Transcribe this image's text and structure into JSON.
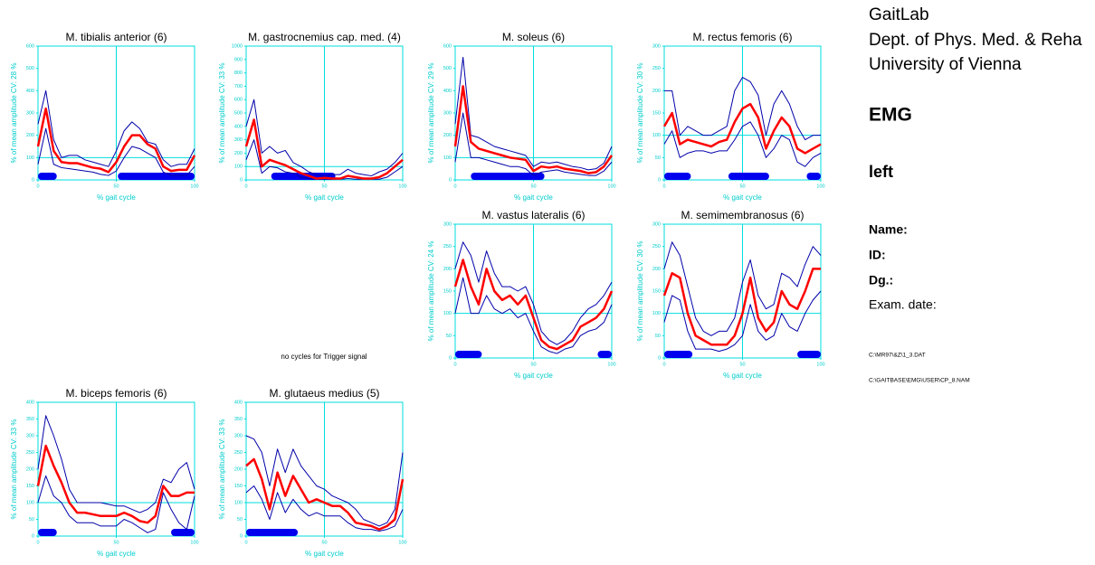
{
  "header": {
    "lines": [
      "GaitLab",
      "Dept. of Phys. Med. & Reha",
      "University of Vienna"
    ],
    "mode": "EMG",
    "side": "left",
    "fields": [
      "Name:",
      "ID:",
      "Dg.:"
    ],
    "exam_date": "Exam. date:",
    "files": [
      "C:\\MR97\\&Z\\1_3.DAT",
      "C:\\GAITBASE\\EMG\\USER\\CP_8.NAM"
    ]
  },
  "message": "no cycles for Trigger signal",
  "chart_data": [
    {
      "type": "line",
      "title": "M. tibialis anterior (6)",
      "xlabel": "% gait cycle",
      "ylabel": "% of mean amplitude  CV: 28 %",
      "x": [
        0,
        5,
        10,
        15,
        20,
        25,
        30,
        35,
        40,
        45,
        50,
        55,
        60,
        65,
        70,
        75,
        80,
        85,
        90,
        95,
        100
      ],
      "xlim": [
        0,
        100
      ],
      "xticks": [
        0,
        50,
        100
      ],
      "ylim": [
        0,
        600
      ],
      "yticks": [
        0,
        100,
        200,
        300,
        400,
        500,
        600
      ],
      "refline_x": 50,
      "refline_y": 100,
      "bars": [
        [
          0,
          12
        ],
        [
          51,
          100
        ]
      ],
      "bar_color": "#0000ee",
      "series": [
        {
          "color": "#0000aa",
          "values": [
            250,
            400,
            180,
            100,
            110,
            110,
            90,
            80,
            70,
            60,
            130,
            220,
            260,
            230,
            170,
            160,
            90,
            60,
            70,
            70,
            140
          ]
        },
        {
          "color": "#0000aa",
          "values": [
            70,
            230,
            70,
            55,
            50,
            45,
            40,
            35,
            25,
            20,
            40,
            100,
            150,
            140,
            120,
            100,
            35,
            20,
            20,
            20,
            60
          ]
        },
        {
          "color": "#ff0000",
          "values": [
            150,
            320,
            130,
            80,
            75,
            75,
            65,
            55,
            50,
            35,
            80,
            150,
            200,
            200,
            160,
            140,
            60,
            40,
            45,
            45,
            110
          ]
        }
      ]
    },
    {
      "type": "line",
      "title": "M. gastrocnemius cap. med. (4)",
      "xlabel": "% gait cycle",
      "ylabel": "% of mean amplitude  CV: 33 %",
      "x": [
        0,
        5,
        10,
        15,
        20,
        25,
        30,
        35,
        40,
        45,
        50,
        55,
        60,
        65,
        70,
        75,
        80,
        85,
        90,
        95,
        100
      ],
      "xlim": [
        0,
        100
      ],
      "xticks": [
        0,
        50,
        100
      ],
      "ylim": [
        0,
        1000
      ],
      "yticks": [
        0,
        100,
        200,
        300,
        400,
        500,
        600,
        700,
        800,
        900,
        1000
      ],
      "refline_x": 50,
      "refline_y": 100,
      "bars": [
        [
          16,
          57
        ]
      ],
      "bar_color": "#0000ee",
      "series": [
        {
          "color": "#0000aa",
          "values": [
            400,
            600,
            200,
            250,
            200,
            220,
            130,
            100,
            60,
            40,
            30,
            40,
            40,
            80,
            50,
            40,
            30,
            60,
            80,
            130,
            200
          ]
        },
        {
          "color": "#0000aa",
          "values": [
            150,
            300,
            50,
            100,
            90,
            60,
            50,
            20,
            10,
            5,
            5,
            5,
            5,
            10,
            5,
            5,
            5,
            5,
            20,
            60,
            100
          ]
        },
        {
          "color": "#ff0000",
          "values": [
            250,
            450,
            100,
            150,
            130,
            110,
            80,
            50,
            30,
            10,
            15,
            10,
            10,
            30,
            20,
            10,
            10,
            20,
            50,
            100,
            150
          ]
        }
      ]
    },
    {
      "type": "line",
      "title": "M. soleus (6)",
      "xlabel": "% gait cycle",
      "ylabel": "% of mean amplitude  CV: 29 %",
      "x": [
        0,
        5,
        10,
        15,
        20,
        25,
        30,
        35,
        40,
        45,
        50,
        55,
        60,
        65,
        70,
        75,
        80,
        85,
        90,
        95,
        100
      ],
      "xlim": [
        0,
        100
      ],
      "xticks": [
        0,
        50,
        100
      ],
      "ylim": [
        0,
        600
      ],
      "yticks": [
        0,
        100,
        200,
        300,
        400,
        500,
        600
      ],
      "refline_x": 50,
      "refline_y": 100,
      "bars": [
        [
          10,
          57
        ]
      ],
      "bar_color": "#0000ee",
      "series": [
        {
          "color": "#0000aa",
          "values": [
            250,
            550,
            200,
            190,
            170,
            150,
            140,
            130,
            120,
            110,
            60,
            80,
            75,
            80,
            70,
            60,
            55,
            45,
            50,
            75,
            150
          ]
        },
        {
          "color": "#0000aa",
          "values": [
            80,
            300,
            100,
            100,
            90,
            80,
            70,
            60,
            60,
            50,
            20,
            35,
            40,
            45,
            35,
            30,
            25,
            20,
            20,
            40,
            80
          ]
        },
        {
          "color": "#ff0000",
          "values": [
            150,
            420,
            170,
            140,
            130,
            120,
            110,
            100,
            95,
            90,
            40,
            60,
            55,
            60,
            50,
            45,
            40,
            30,
            35,
            60,
            110
          ]
        }
      ]
    },
    {
      "type": "line",
      "title": "M. rectus femoris (6)",
      "xlabel": "% gait cycle",
      "ylabel": "% of mean amplitude  CV: 30 %",
      "x": [
        0,
        5,
        10,
        15,
        20,
        25,
        30,
        35,
        40,
        45,
        50,
        55,
        60,
        65,
        70,
        75,
        80,
        85,
        90,
        95,
        100
      ],
      "xlim": [
        0,
        100
      ],
      "xticks": [
        0,
        50,
        100
      ],
      "ylim": [
        0,
        300
      ],
      "yticks": [
        0,
        50,
        100,
        150,
        200,
        250,
        300
      ],
      "refline_x": 50,
      "refline_y": 100,
      "bars": [
        [
          0,
          17
        ],
        [
          41,
          67
        ],
        [
          91,
          100
        ]
      ],
      "bar_color": "#0000ee",
      "series": [
        {
          "color": "#0000aa",
          "values": [
            200,
            200,
            100,
            120,
            110,
            100,
            100,
            110,
            120,
            200,
            230,
            220,
            190,
            100,
            170,
            200,
            170,
            120,
            90,
            100,
            100
          ]
        },
        {
          "color": "#0000aa",
          "values": [
            80,
            110,
            50,
            60,
            65,
            65,
            60,
            65,
            65,
            90,
            120,
            130,
            100,
            50,
            70,
            100,
            90,
            40,
            30,
            50,
            60
          ]
        },
        {
          "color": "#ff0000",
          "values": [
            120,
            150,
            80,
            90,
            85,
            80,
            75,
            85,
            90,
            130,
            160,
            170,
            140,
            70,
            110,
            140,
            120,
            70,
            60,
            70,
            80
          ]
        }
      ]
    },
    {
      "type": "line",
      "title": "M. vastus lateralis (6)",
      "xlabel": "% gait cycle",
      "ylabel": "% of mean amplitude  CV: 24 %",
      "x": [
        0,
        5,
        10,
        15,
        20,
        25,
        30,
        35,
        40,
        45,
        50,
        55,
        60,
        65,
        70,
        75,
        80,
        85,
        90,
        95,
        100
      ],
      "xlim": [
        0,
        100
      ],
      "xticks": [
        0,
        50,
        100
      ],
      "ylim": [
        0,
        300
      ],
      "yticks": [
        0,
        50,
        100,
        150,
        200,
        250,
        300
      ],
      "refline_x": 50,
      "refline_y": 100,
      "bars": [
        [
          0,
          17
        ],
        [
          91,
          100
        ]
      ],
      "bar_color": "#0000ee",
      "series": [
        {
          "color": "#0000aa",
          "values": [
            200,
            260,
            230,
            170,
            240,
            190,
            160,
            160,
            150,
            160,
            120,
            60,
            40,
            30,
            40,
            60,
            90,
            110,
            120,
            140,
            170
          ]
        },
        {
          "color": "#0000aa",
          "values": [
            100,
            180,
            100,
            100,
            140,
            110,
            100,
            110,
            90,
            100,
            60,
            25,
            15,
            10,
            20,
            25,
            50,
            60,
            65,
            80,
            120
          ]
        },
        {
          "color": "#ff0000",
          "values": [
            160,
            220,
            160,
            120,
            200,
            150,
            130,
            140,
            120,
            140,
            90,
            40,
            25,
            20,
            30,
            40,
            70,
            80,
            90,
            110,
            150
          ]
        }
      ]
    },
    {
      "type": "line",
      "title": "M. semimembranosus (6)",
      "xlabel": "% gait cycle",
      "ylabel": "% of mean amplitude  CV: 30 %",
      "x": [
        0,
        5,
        10,
        15,
        20,
        25,
        30,
        35,
        40,
        45,
        50,
        55,
        60,
        65,
        70,
        75,
        80,
        85,
        90,
        95,
        100
      ],
      "xlim": [
        0,
        100
      ],
      "xticks": [
        0,
        50,
        100
      ],
      "ylim": [
        0,
        300
      ],
      "yticks": [
        0,
        50,
        100,
        150,
        200,
        250,
        300
      ],
      "refline_x": 50,
      "refline_y": 100,
      "bars": [
        [
          0,
          18
        ],
        [
          85,
          100
        ]
      ],
      "bar_color": "#0000ee",
      "series": [
        {
          "color": "#0000aa",
          "values": [
            200,
            260,
            230,
            160,
            90,
            60,
            50,
            60,
            60,
            90,
            170,
            220,
            140,
            110,
            120,
            190,
            180,
            160,
            210,
            250,
            230
          ]
        },
        {
          "color": "#0000aa",
          "values": [
            80,
            140,
            130,
            60,
            20,
            20,
            20,
            15,
            20,
            30,
            50,
            120,
            60,
            40,
            50,
            100,
            70,
            60,
            100,
            130,
            150
          ]
        },
        {
          "color": "#ff0000",
          "values": [
            140,
            190,
            180,
            100,
            50,
            40,
            30,
            30,
            30,
            50,
            100,
            180,
            90,
            60,
            80,
            150,
            120,
            110,
            150,
            200,
            200
          ]
        }
      ]
    },
    {
      "type": "line",
      "title": "M. biceps femoris (6)",
      "xlabel": "% gait cycle",
      "ylabel": "% of mean amplitude  CV: 33 %",
      "x": [
        0,
        5,
        10,
        15,
        20,
        25,
        30,
        35,
        40,
        45,
        50,
        55,
        60,
        65,
        70,
        75,
        80,
        85,
        90,
        95,
        100
      ],
      "xlim": [
        0,
        100
      ],
      "xticks": [
        0,
        50,
        100
      ],
      "ylim": [
        0,
        400
      ],
      "yticks": [
        0,
        50,
        100,
        150,
        200,
        250,
        300,
        350,
        400
      ],
      "refline_x": 50,
      "refline_y": 100,
      "bars": [
        [
          0,
          12
        ],
        [
          85,
          100
        ]
      ],
      "bar_color": "#0000ee",
      "series": [
        {
          "color": "#0000aa",
          "values": [
            200,
            360,
            300,
            230,
            140,
            100,
            100,
            100,
            100,
            95,
            90,
            90,
            80,
            70,
            80,
            100,
            170,
            160,
            200,
            220,
            140
          ]
        },
        {
          "color": "#0000aa",
          "values": [
            100,
            180,
            120,
            100,
            60,
            40,
            40,
            40,
            30,
            30,
            30,
            50,
            40,
            25,
            10,
            20,
            130,
            80,
            40,
            20,
            120
          ]
        },
        {
          "color": "#ff0000",
          "values": [
            150,
            270,
            210,
            160,
            100,
            70,
            70,
            65,
            60,
            60,
            60,
            70,
            60,
            45,
            40,
            60,
            150,
            120,
            120,
            130,
            130
          ]
        }
      ]
    },
    {
      "type": "line",
      "title": "M. glutaeus medius (5)",
      "xlabel": "% gait cycle",
      "ylabel": "% of mean amplitude  CV: 33 %",
      "x": [
        0,
        5,
        10,
        15,
        20,
        25,
        30,
        35,
        40,
        45,
        50,
        55,
        60,
        65,
        70,
        75,
        80,
        85,
        90,
        95,
        100
      ],
      "xlim": [
        0,
        100
      ],
      "xticks": [
        0,
        50,
        100
      ],
      "ylim": [
        0,
        400
      ],
      "yticks": [
        0,
        50,
        100,
        150,
        200,
        250,
        300,
        350,
        400
      ],
      "refline_x": 50,
      "refline_y": 100,
      "bars": [
        [
          0,
          33
        ]
      ],
      "bar_color": "#0000ee",
      "series": [
        {
          "color": "#0000aa",
          "values": [
            300,
            290,
            250,
            150,
            260,
            190,
            260,
            210,
            180,
            150,
            140,
            120,
            110,
            100,
            80,
            50,
            40,
            30,
            40,
            80,
            250
          ]
        },
        {
          "color": "#0000aa",
          "values": [
            130,
            150,
            110,
            50,
            130,
            70,
            110,
            80,
            60,
            70,
            60,
            60,
            60,
            40,
            25,
            20,
            20,
            15,
            20,
            30,
            80
          ]
        },
        {
          "color": "#ff0000",
          "values": [
            210,
            230,
            170,
            80,
            190,
            120,
            180,
            140,
            100,
            110,
            100,
            90,
            90,
            70,
            40,
            35,
            30,
            20,
            30,
            50,
            170
          ]
        }
      ]
    }
  ]
}
